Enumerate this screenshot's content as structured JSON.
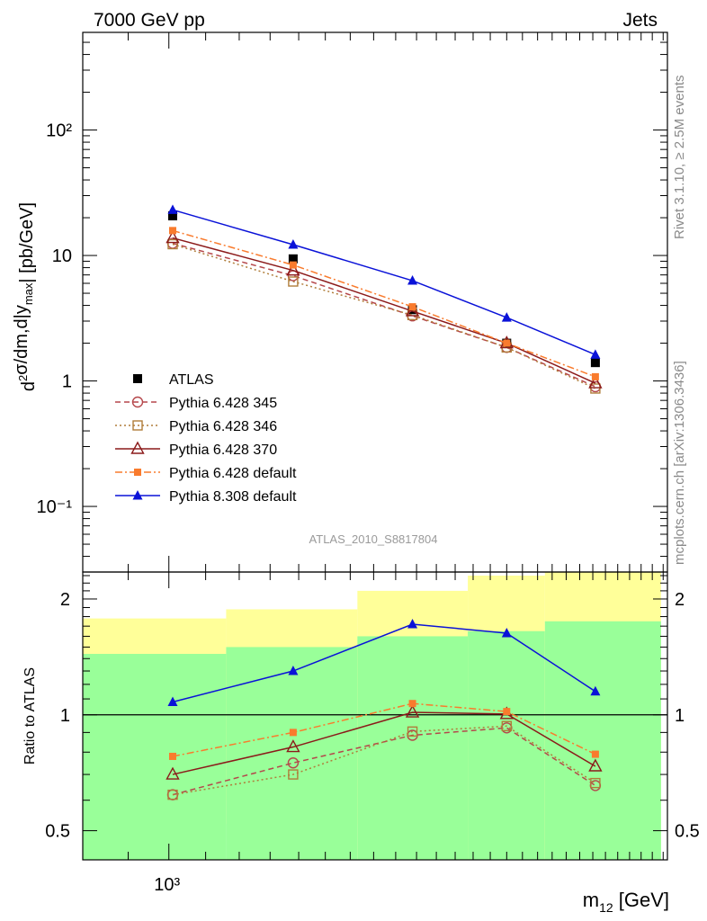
{
  "header": {
    "left_title": "7000 GeV pp",
    "right_title": "Jets"
  },
  "side_labels": {
    "rivet": "Rivet 3.1.10, ≥ 2.5M events",
    "mcplots": "mcplots.cern.ch [arXiv:1306.3436]"
  },
  "analysis_label": "ATLAS_2010_S8817804",
  "chart_data": [
    {
      "type": "line",
      "panel": "main",
      "ylabel": "d²σ/dm,d|y_max| [pb/GeV]",
      "yscale": "log",
      "ylim": [
        0.03,
        600
      ],
      "xscale": "log",
      "xlim": [
        800,
        2800
      ],
      "y_tick_labels": [
        "10⁻¹",
        "1",
        "10",
        "10²"
      ],
      "legend_position": "bottom-left",
      "x": [
        1010,
        1380,
        1880,
        2400,
        3020
      ],
      "series": [
        {
          "name": "ATLAS",
          "color": "#000000",
          "marker": "square-filled",
          "line": "none",
          "values": [
            20.7,
            9.4,
            3.7,
            2.0,
            1.4
          ]
        },
        {
          "name": "Pythia 6.428 345",
          "color": "#b5474b",
          "marker": "circle-open",
          "line": "dashed",
          "values": [
            12.5,
            6.9,
            3.3,
            1.85,
            0.9
          ]
        },
        {
          "name": "Pythia 6.428 346",
          "color": "#b07d3a",
          "marker": "square-open",
          "line": "dotted",
          "values": [
            12.3,
            6.2,
            3.35,
            1.85,
            0.87
          ]
        },
        {
          "name": "Pythia 6.428 370",
          "color": "#8b1a1a",
          "marker": "triangle-open",
          "line": "solid",
          "values": [
            13.8,
            7.6,
            3.6,
            2.0,
            0.96
          ]
        },
        {
          "name": "Pythia 6.428 default",
          "color": "#f97b2d",
          "marker": "square-filled-small",
          "line": "dashdot",
          "values": [
            15.8,
            8.4,
            3.9,
            2.0,
            1.08
          ]
        },
        {
          "name": "Pythia 8.308 default",
          "color": "#0a12d8",
          "marker": "triangle-filled",
          "line": "solid",
          "values": [
            23.1,
            12.2,
            6.3,
            3.2,
            1.62
          ]
        }
      ]
    },
    {
      "type": "line",
      "panel": "ratio",
      "ylabel": "Ratio to ATLAS",
      "yscale": "log",
      "ylim": [
        0.42,
        2.35
      ],
      "y_tick_labels": [
        "0.5",
        "1",
        "2"
      ],
      "xlabel": "m₁₂ [GeV]",
      "x_tick_labels": [
        "10³"
      ],
      "x": [
        1010,
        1380,
        1880,
        2400,
        3020
      ],
      "reference_line": 1.0,
      "bands": {
        "bin_edges": [
          800,
          1160,
          1630,
          2170,
          2650,
          3580
        ],
        "green": {
          "color": "#99ff99",
          "lower": [
            0.42,
            0.42,
            0.42,
            0.42,
            0.42
          ],
          "upper": [
            1.44,
            1.5,
            1.6,
            1.65,
            1.75
          ]
        },
        "yellow": {
          "color": "#ffff99",
          "lower": [
            0.6,
            0.52,
            0.42,
            0.42,
            0.42
          ],
          "upper": [
            1.78,
            1.88,
            2.1,
            2.3,
            2.35
          ]
        }
      },
      "series": [
        {
          "name": "Pythia 6.428 345",
          "color": "#b5474b",
          "marker": "circle-open",
          "line": "dashed",
          "values": [
            0.62,
            0.75,
            0.885,
            0.925,
            0.655
          ]
        },
        {
          "name": "Pythia 6.428 346",
          "color": "#b07d3a",
          "marker": "square-open",
          "line": "dotted",
          "values": [
            0.62,
            0.7,
            0.905,
            0.935,
            0.665
          ]
        },
        {
          "name": "Pythia 6.428 370",
          "color": "#8b1a1a",
          "marker": "triangle-open",
          "line": "solid",
          "values": [
            0.7,
            0.825,
            1.015,
            1.005,
            0.735
          ]
        },
        {
          "name": "Pythia 6.428 default",
          "color": "#f97b2d",
          "marker": "square-filled-small",
          "line": "dashdot",
          "values": [
            0.78,
            0.9,
            1.07,
            1.02,
            0.79
          ]
        },
        {
          "name": "Pythia 8.308 default",
          "color": "#0a12d8",
          "marker": "triangle-filled",
          "line": "solid",
          "values": [
            1.08,
            1.3,
            1.72,
            1.63,
            1.15
          ]
        }
      ]
    }
  ]
}
